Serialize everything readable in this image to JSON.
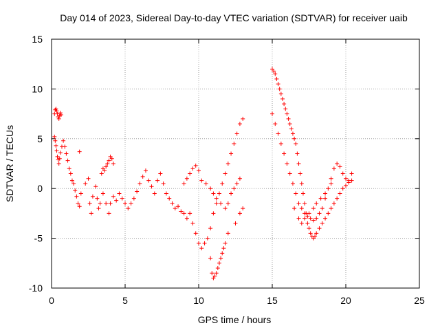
{
  "chart_data": {
    "type": "scatter",
    "title": "Day 014 of 2023, Sidereal Day-to-day VTEC variation (SDTVAR) for receiver uaib",
    "xlabel": "GPS time / hours",
    "ylabel": "SDTVAR / TECUs",
    "xlim": [
      0,
      25
    ],
    "ylim": [
      -10,
      15
    ],
    "xticks": [
      0,
      5,
      10,
      15,
      20,
      25
    ],
    "yticks": [
      -10,
      -5,
      0,
      5,
      10,
      15
    ],
    "xtick_labels": [
      "0",
      "5",
      "10",
      "15",
      "20",
      "25"
    ],
    "ytick_labels": [
      "-10",
      "-5",
      "0",
      "5",
      "10",
      "15"
    ],
    "grid": true,
    "marker": "+",
    "color": "#ff0000",
    "series": [
      {
        "name": "SDTVAR",
        "x": [
          0.2,
          0.25,
          0.3,
          0.35,
          0.4,
          0.45,
          0.5,
          0.55,
          0.6,
          0.65,
          0.2,
          0.25,
          0.3,
          0.35,
          0.4,
          0.45,
          0.5,
          0.55,
          0.6,
          0.7,
          0.8,
          0.9,
          1.0,
          1.1,
          1.2,
          1.3,
          1.4,
          1.5,
          1.6,
          1.7,
          1.8,
          1.9,
          1.9,
          2.0,
          2.3,
          2.5,
          2.6,
          2.7,
          2.8,
          3.0,
          3.1,
          3.2,
          3.3,
          3.4,
          3.5,
          3.6,
          3.7,
          3.8,
          3.9,
          4.0,
          4.1,
          4.2,
          3.5,
          3.7,
          3.9,
          4.0,
          4.2,
          4.4,
          4.6,
          4.8,
          5.0,
          5.2,
          5.4,
          5.6,
          5.8,
          6.0,
          6.2,
          6.4,
          6.6,
          6.8,
          7.0,
          7.2,
          7.4,
          7.6,
          7.8,
          8.0,
          8.2,
          8.4,
          8.6,
          8.8,
          9.0,
          9.2,
          9.4,
          9.6,
          9.8,
          10.0,
          10.2,
          10.4,
          10.6,
          10.8,
          11.0,
          11.2,
          11.4,
          11.6,
          11.8,
          12.0,
          12.2,
          12.4,
          12.6,
          12.8,
          13.0,
          9.0,
          9.2,
          9.4,
          9.6,
          9.8,
          10.0,
          10.2,
          10.5,
          10.8,
          11.0,
          11.2,
          11.5,
          11.8,
          12.0,
          12.2,
          12.4,
          12.6,
          12.8,
          10.8,
          10.9,
          11.0,
          11.1,
          11.2,
          11.3,
          11.4,
          11.5,
          11.6,
          11.7,
          11.8,
          12.0,
          12.5,
          12.8,
          13.0,
          15.0,
          15.1,
          15.2,
          15.3,
          15.4,
          15.5,
          15.6,
          15.7,
          15.8,
          15.9,
          16.0,
          16.1,
          16.2,
          16.3,
          16.4,
          16.5,
          16.6,
          16.7,
          16.8,
          16.9,
          17.0,
          17.1,
          17.2,
          17.3,
          17.4,
          17.5,
          17.6,
          17.7,
          17.8,
          17.9,
          18.0,
          18.2,
          18.4,
          18.6,
          18.8,
          19.0,
          19.2,
          19.4,
          19.6,
          19.8,
          20.0,
          20.2,
          20.4,
          15.0,
          15.2,
          15.4,
          15.6,
          15.8,
          16.0,
          16.2,
          16.4,
          16.6,
          16.8,
          17.0,
          17.2,
          17.4,
          17.6,
          17.8,
          18.0,
          18.2,
          18.4,
          18.6,
          18.8,
          19.0,
          19.2,
          19.4,
          19.6,
          19.8,
          20.0,
          20.2,
          20.4,
          16.5,
          16.8,
          17.0,
          17.2,
          17.5,
          17.8,
          18.0,
          18.3,
          18.6,
          19.0
        ],
        "y": [
          7.5,
          7.9,
          8.0,
          7.8,
          7.5,
          7.2,
          7.0,
          7.3,
          7.6,
          7.4,
          5.2,
          4.8,
          4.3,
          3.8,
          3.2,
          2.9,
          2.5,
          3.0,
          3.6,
          4.2,
          4.8,
          4.2,
          3.5,
          2.8,
          2.0,
          1.5,
          0.8,
          0.5,
          -0.2,
          -0.8,
          -1.5,
          -1.8,
          3.7,
          -0.5,
          0.5,
          1.0,
          -1.5,
          -2.5,
          -0.8,
          0.2,
          -1.0,
          -2.0,
          -1.5,
          1.5,
          2.0,
          1.8,
          2.2,
          2.5,
          2.8,
          3.2,
          3.0,
          2.5,
          -0.5,
          -1.5,
          -2.5,
          -1.5,
          -0.8,
          -1.2,
          -0.5,
          -1.0,
          -1.5,
          -2.0,
          -1.5,
          -1.0,
          -0.3,
          0.5,
          1.2,
          1.8,
          0.8,
          0.2,
          -0.5,
          0.8,
          1.5,
          0.5,
          -0.5,
          -1.0,
          -1.5,
          -2.0,
          -1.8,
          -2.3,
          -2.5,
          -3.0,
          -2.5,
          -3.5,
          -4.5,
          -5.5,
          -6.0,
          -5.5,
          -5.0,
          -4.0,
          -2.5,
          -1.5,
          -0.5,
          0.5,
          1.5,
          2.5,
          3.5,
          4.5,
          5.5,
          6.5,
          7.0,
          0.5,
          1.0,
          1.5,
          2.0,
          2.3,
          1.8,
          0.8,
          0.5,
          0.0,
          -0.5,
          -1.0,
          -1.5,
          -2.0,
          -1.5,
          -0.5,
          0.0,
          0.5,
          1.0,
          -7.0,
          -8.5,
          -9.0,
          -8.8,
          -8.5,
          -8.0,
          -7.5,
          -7.0,
          -6.5,
          -6.0,
          -5.5,
          -4.5,
          -3.5,
          -2.5,
          -2.0,
          12.0,
          11.8,
          11.5,
          11.0,
          10.5,
          10.0,
          9.5,
          9.0,
          8.5,
          8.0,
          7.5,
          7.0,
          6.5,
          6.0,
          5.5,
          5.0,
          4.5,
          3.5,
          2.5,
          1.5,
          0.5,
          -0.5,
          -1.5,
          -2.5,
          -3.5,
          -4.0,
          -4.5,
          -4.8,
          -5.0,
          -4.8,
          -4.5,
          -4.0,
          -3.5,
          -3.0,
          -2.5,
          -2.0,
          -1.5,
          -1.0,
          -0.5,
          0.0,
          0.3,
          0.6,
          0.8,
          7.5,
          6.5,
          5.5,
          4.5,
          3.5,
          2.5,
          1.5,
          0.5,
          -0.5,
          -1.5,
          -2.0,
          -2.5,
          -2.8,
          -3.0,
          -3.2,
          -3.0,
          -2.5,
          -2.0,
          -1.0,
          0.0,
          1.0,
          2.0,
          2.5,
          2.2,
          1.5,
          1.0,
          0.8,
          1.5,
          -2.0,
          -3.0,
          -3.5,
          -3.0,
          -2.5,
          -2.0,
          -1.5,
          -1.0,
          -0.5,
          0.5
        ]
      }
    ]
  }
}
